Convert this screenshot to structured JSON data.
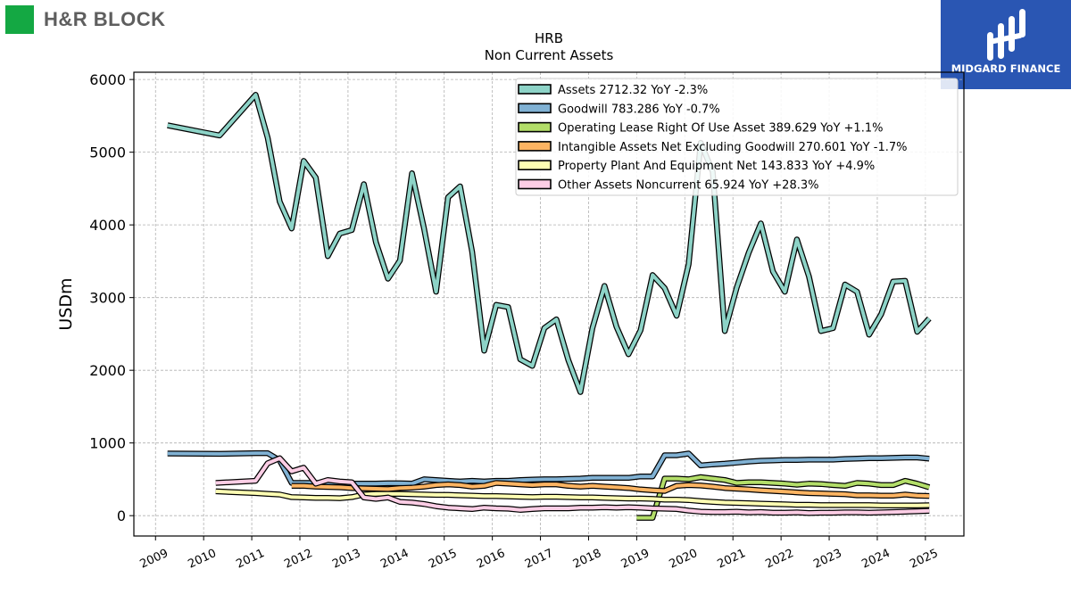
{
  "brand": {
    "left_logo_text": "H&R BLOCK",
    "right_logo_text": "MIDGARD FINANCE",
    "left_logo_color": "#14a843",
    "right_logo_color": "#2a56b3"
  },
  "chart_data": {
    "type": "line",
    "title": "HRB",
    "subtitle": "Non Current  Assets",
    "ylabel": "USDm",
    "xlabel": "",
    "xlim": [
      2008.55,
      2025.8
    ],
    "ylim": [
      -280,
      6100
    ],
    "yticks": [
      0,
      1000,
      2000,
      3000,
      4000,
      5000,
      6000
    ],
    "xticks": [
      "2009",
      "2010",
      "2011",
      "2012",
      "2013",
      "2014",
      "2015",
      "2016",
      "2017",
      "2018",
      "2019",
      "2020",
      "2021",
      "2022",
      "2023",
      "2024",
      "2025"
    ],
    "grid": true,
    "legend_position": "top-right",
    "series": [
      {
        "name": "Assets  2712.32 YoY -2.3%",
        "color": "#8dd3c7",
        "x": [
          2009.25,
          2010.33,
          2011.08,
          2011.33,
          2011.58,
          2011.83,
          2012.08,
          2012.33,
          2012.58,
          2012.83,
          2013.08,
          2013.33,
          2013.58,
          2013.83,
          2014.08,
          2014.33,
          2014.58,
          2014.83,
          2015.08,
          2015.33,
          2015.58,
          2015.83,
          2016.08,
          2016.33,
          2016.58,
          2016.83,
          2017.08,
          2017.33,
          2017.58,
          2017.83,
          2018.08,
          2018.33,
          2018.58,
          2018.83,
          2019.08,
          2019.33,
          2019.58,
          2019.83,
          2020.08,
          2020.33,
          2020.58,
          2020.83,
          2021.08,
          2021.33,
          2021.58,
          2021.83,
          2022.08,
          2022.33,
          2022.58,
          2022.83,
          2023.08,
          2023.33,
          2023.58,
          2023.83,
          2024.08,
          2024.33,
          2024.58,
          2024.83,
          2025.08
        ],
        "values": [
          5370,
          5230,
          5790,
          5200,
          4320,
          3950,
          4880,
          4650,
          3570,
          3880,
          3930,
          4560,
          3760,
          3260,
          3510,
          4710,
          3950,
          3080,
          4380,
          4530,
          3630,
          2270,
          2900,
          2870,
          2150,
          2060,
          2580,
          2700,
          2140,
          1700,
          2580,
          3160,
          2600,
          2220,
          2550,
          3310,
          3130,
          2750,
          3460,
          5130,
          4730,
          2540,
          3140,
          3620,
          4020,
          3360,
          3080,
          3800,
          3290,
          2540,
          2580,
          3180,
          3080,
          2490,
          2770,
          3220,
          3230,
          2530,
          2712.32
        ]
      },
      {
        "name": "Goodwill  783.286 YoY -0.7%",
        "color": "#80b1d3",
        "x": [
          2009.25,
          2010.33,
          2011.08,
          2011.33,
          2011.58,
          2011.83,
          2012.08,
          2012.33,
          2012.58,
          2012.83,
          2013.08,
          2013.33,
          2013.58,
          2013.83,
          2014.08,
          2014.33,
          2014.58,
          2014.83,
          2015.08,
          2015.33,
          2015.58,
          2015.83,
          2016.08,
          2016.33,
          2016.58,
          2016.83,
          2017.08,
          2017.33,
          2017.58,
          2017.83,
          2018.08,
          2018.33,
          2018.58,
          2018.83,
          2019.08,
          2019.33,
          2019.58,
          2019.83,
          2020.08,
          2020.33,
          2020.58,
          2020.83,
          2021.08,
          2021.33,
          2021.58,
          2021.83,
          2022.08,
          2022.33,
          2022.58,
          2022.83,
          2023.08,
          2023.33,
          2023.58,
          2023.83,
          2024.08,
          2024.33,
          2024.58,
          2024.83,
          2025.08
        ],
        "values": [
          855,
          850,
          860,
          860,
          760,
          450,
          450,
          450,
          450,
          450,
          440,
          440,
          440,
          445,
          445,
          440,
          500,
          490,
          480,
          470,
          480,
          470,
          480,
          480,
          490,
          495,
          500,
          500,
          505,
          510,
          520,
          520,
          520,
          520,
          540,
          540,
          830,
          830,
          855,
          690,
          705,
          715,
          730,
          745,
          755,
          760,
          765,
          765,
          770,
          770,
          770,
          780,
          785,
          790,
          790,
          795,
          800,
          800,
          783.286
        ]
      },
      {
        "name": "Operating Lease Right Of Use Asset  389.629 YoY +1.1%",
        "color": "#b3de69",
        "x": [
          2019.0,
          2019.33,
          2019.58,
          2019.83,
          2020.08,
          2020.33,
          2020.58,
          2020.83,
          2021.08,
          2021.33,
          2021.58,
          2021.83,
          2022.08,
          2022.33,
          2022.58,
          2022.83,
          2023.08,
          2023.33,
          2023.58,
          2023.83,
          2024.08,
          2024.33,
          2024.58,
          2024.83,
          2025.08
        ],
        "values": [
          -30,
          -30,
          510,
          510,
          500,
          530,
          510,
          490,
          450,
          460,
          460,
          450,
          440,
          425,
          440,
          435,
          420,
          410,
          450,
          440,
          420,
          420,
          480,
          440,
          389.629
        ]
      },
      {
        "name": "Intangible Assets Net Excluding Goodwill  270.601 YoY -1.7%",
        "color": "#fdb462",
        "x": [
          2011.83,
          2012.08,
          2012.33,
          2012.58,
          2012.83,
          2013.08,
          2013.33,
          2013.58,
          2013.83,
          2014.08,
          2014.33,
          2014.58,
          2014.83,
          2015.08,
          2015.33,
          2015.58,
          2015.83,
          2016.08,
          2016.33,
          2016.58,
          2016.83,
          2017.08,
          2017.33,
          2017.58,
          2017.83,
          2018.08,
          2018.33,
          2018.58,
          2018.83,
          2019.08,
          2019.33,
          2019.58,
          2019.83,
          2020.08,
          2020.33,
          2020.58,
          2020.83,
          2021.08,
          2021.33,
          2021.58,
          2021.83,
          2022.08,
          2022.33,
          2022.58,
          2022.83,
          2023.08,
          2023.33,
          2023.58,
          2023.83,
          2024.08,
          2024.33,
          2024.58,
          2024.83,
          2025.08
        ],
        "values": [
          410,
          410,
          400,
          395,
          390,
          380,
          375,
          370,
          365,
          380,
          385,
          400,
          420,
          430,
          420,
          400,
          410,
          450,
          440,
          430,
          420,
          430,
          430,
          410,
          400,
          410,
          400,
          390,
          380,
          360,
          350,
          340,
          410,
          420,
          415,
          400,
          380,
          370,
          360,
          350,
          340,
          330,
          320,
          310,
          305,
          300,
          295,
          280,
          280,
          275,
          275,
          290,
          275,
          270.601
        ]
      },
      {
        "name": "Property Plant And Equipment Net  143.833 YoY +4.9%",
        "color": "#ffffb3",
        "x": [
          2010.25,
          2011.08,
          2011.33,
          2011.58,
          2011.83,
          2012.08,
          2012.33,
          2012.58,
          2012.83,
          2013.08,
          2013.33,
          2013.58,
          2013.83,
          2014.08,
          2014.33,
          2014.58,
          2014.83,
          2015.08,
          2015.33,
          2015.58,
          2015.83,
          2016.08,
          2016.33,
          2016.58,
          2016.83,
          2017.08,
          2017.33,
          2017.58,
          2017.83,
          2018.08,
          2018.33,
          2018.58,
          2018.83,
          2019.08,
          2019.33,
          2019.58,
          2019.83,
          2020.08,
          2020.33,
          2020.58,
          2020.83,
          2021.08,
          2021.33,
          2021.58,
          2021.83,
          2022.08,
          2022.33,
          2022.58,
          2022.83,
          2023.08,
          2023.33,
          2023.58,
          2023.83,
          2024.08,
          2024.33,
          2024.58,
          2024.83,
          2025.08
        ],
        "values": [
          335,
          310,
          300,
          290,
          255,
          250,
          245,
          245,
          240,
          255,
          290,
          300,
          300,
          300,
          295,
          290,
          285,
          285,
          280,
          275,
          270,
          270,
          265,
          260,
          255,
          260,
          260,
          255,
          250,
          250,
          245,
          240,
          235,
          235,
          230,
          220,
          220,
          215,
          200,
          190,
          180,
          175,
          170,
          165,
          160,
          155,
          150,
          150,
          145,
          145,
          145,
          145,
          145,
          140,
          140,
          140,
          140,
          143.833
        ]
      },
      {
        "name": "Other Assets Noncurrent  65.924 YoY +28.3%",
        "color": "#fccde5",
        "x": [
          2010.25,
          2011.08,
          2011.33,
          2011.58,
          2011.83,
          2012.08,
          2012.33,
          2012.58,
          2012.83,
          2013.08,
          2013.33,
          2013.58,
          2013.83,
          2014.08,
          2014.33,
          2014.58,
          2014.83,
          2015.08,
          2015.33,
          2015.58,
          2015.83,
          2016.08,
          2016.33,
          2016.58,
          2016.83,
          2017.08,
          2017.33,
          2017.58,
          2017.83,
          2018.08,
          2018.33,
          2018.58,
          2018.83,
          2019.08,
          2019.33,
          2019.58,
          2019.83,
          2020.08,
          2020.33,
          2020.58,
          2020.83,
          2021.08,
          2021.33,
          2021.58,
          2021.83,
          2022.08,
          2022.33,
          2022.58,
          2022.83,
          2023.08,
          2023.33,
          2023.58,
          2023.83,
          2024.08,
          2024.33,
          2024.58,
          2024.83,
          2025.08
        ],
        "values": [
          450,
          480,
          720,
          790,
          610,
          660,
          440,
          490,
          470,
          460,
          250,
          230,
          250,
          190,
          180,
          160,
          130,
          110,
          100,
          90,
          110,
          100,
          95,
          80,
          90,
          100,
          100,
          100,
          110,
          110,
          115,
          110,
          115,
          110,
          100,
          95,
          90,
          70,
          55,
          50,
          50,
          55,
          45,
          50,
          40,
          40,
          45,
          35,
          40,
          40,
          45,
          45,
          40,
          45,
          50,
          55,
          60,
          65.924
        ]
      }
    ]
  }
}
